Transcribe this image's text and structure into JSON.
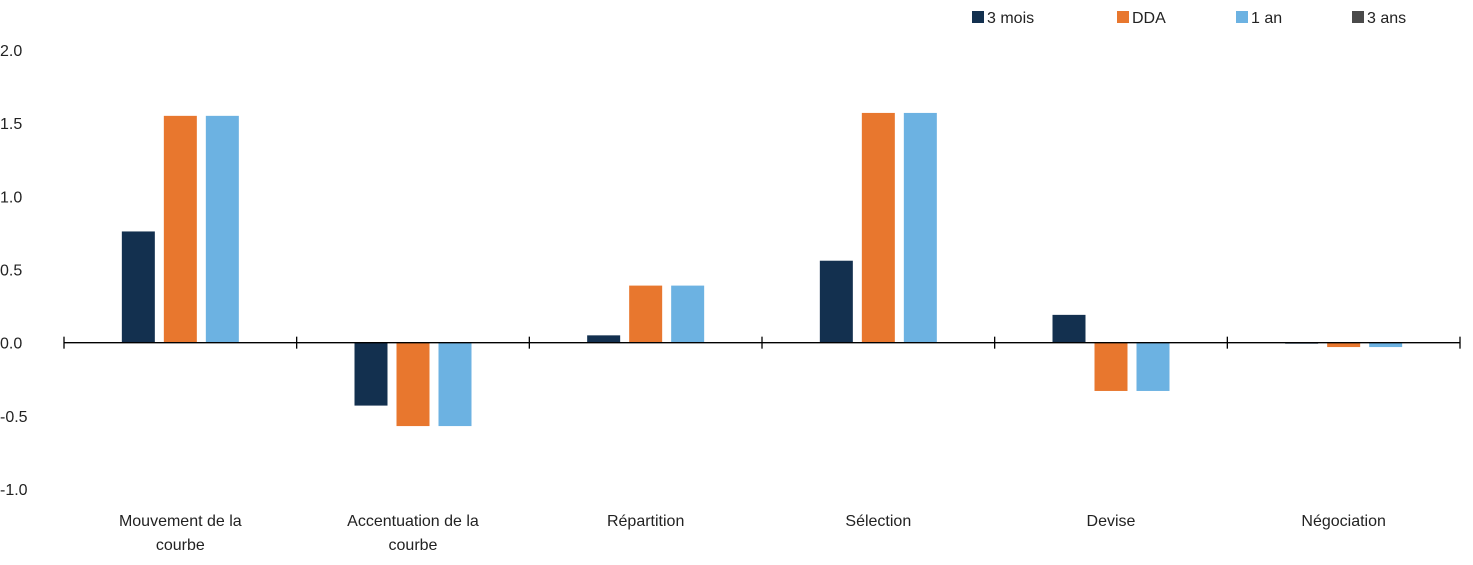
{
  "chart_data": {
    "type": "bar",
    "title": "",
    "xlabel": "",
    "ylabel": "",
    "ylim": [
      -1.0,
      2.0
    ],
    "yticks": [
      "2.0",
      "1.5",
      "1.0",
      "0.5",
      "0.0",
      "-0.5",
      "-1.0"
    ],
    "ytick_values": [
      2.0,
      1.5,
      1.0,
      0.5,
      0.0,
      -0.5,
      -1.0
    ],
    "categories": [
      [
        "Mouvement de la",
        "courbe"
      ],
      [
        "Accentuation de la",
        "courbe"
      ],
      [
        "Répartition"
      ],
      [
        "Sélection"
      ],
      [
        "Devise"
      ],
      [
        "Négociation"
      ]
    ],
    "series": [
      {
        "name": "3 mois",
        "color": "#13304f",
        "values": [
          0.76,
          -0.43,
          0.05,
          0.56,
          0.19,
          -0.005
        ]
      },
      {
        "name": "DDA",
        "color": "#e8772e",
        "values": [
          1.55,
          -0.57,
          0.39,
          1.57,
          -0.33,
          -0.03
        ]
      },
      {
        "name": "1 an",
        "color": "#6cb2e2",
        "values": [
          1.55,
          -0.57,
          0.39,
          1.57,
          -0.33,
          -0.03
        ]
      },
      {
        "name": "3 ans",
        "color": "#4a4a4a",
        "values": [
          0,
          0,
          0,
          0,
          0,
          0
        ]
      }
    ],
    "legend_position": "top-right",
    "grid": false
  }
}
